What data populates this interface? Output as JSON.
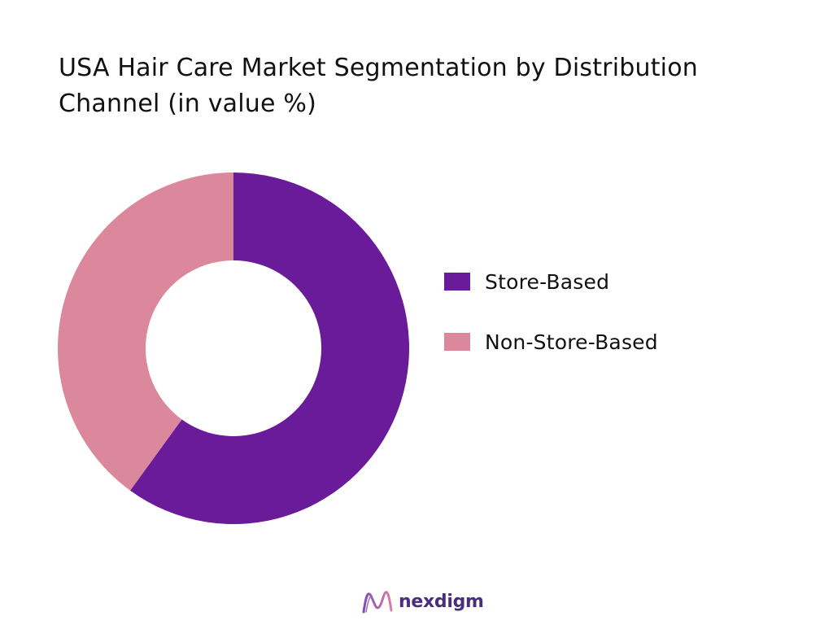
{
  "chart_data": {
    "type": "pie",
    "variant": "donut",
    "title": "USA Hair Care Market Segmentation by Distribution Channel (in value %)",
    "categories": [
      "Store-Based",
      "Non-Store-Based"
    ],
    "values": [
      60,
      40
    ],
    "colors": [
      "#6a1b9a",
      "#dc889c"
    ],
    "legend_position": "right"
  },
  "brand": {
    "name": "nexdigm",
    "logo_icon": "wave-n-logo-icon",
    "colors": [
      "#7e4fb1",
      "#e07aa8"
    ]
  }
}
